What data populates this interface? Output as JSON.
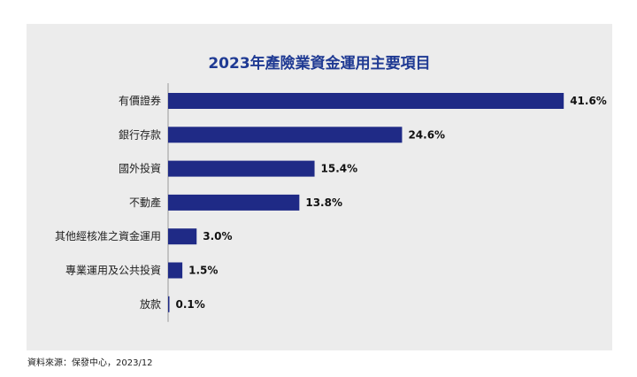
{
  "source_note": "資料來源：保發中心，2023/12",
  "colors": {
    "bar": "#1f2a86",
    "title": "#1f3a93",
    "panel": "#ececec"
  },
  "chart_data": {
    "type": "bar",
    "orientation": "horizontal",
    "title": "2023年產險業資金運用主要項目",
    "categories": [
      "有價證券",
      "銀行存款",
      "國外投資",
      "不動產",
      "其他經核准之資金運用",
      "專業運用及公共投資",
      "放款"
    ],
    "values": [
      41.6,
      24.6,
      15.4,
      13.8,
      3.0,
      1.5,
      0.1
    ],
    "value_labels": [
      "41.6%",
      "24.6%",
      "15.4%",
      "13.8%",
      "3.0%",
      "1.5%",
      "0.1%"
    ],
    "unit": "%",
    "grid": false,
    "legend": "none"
  }
}
